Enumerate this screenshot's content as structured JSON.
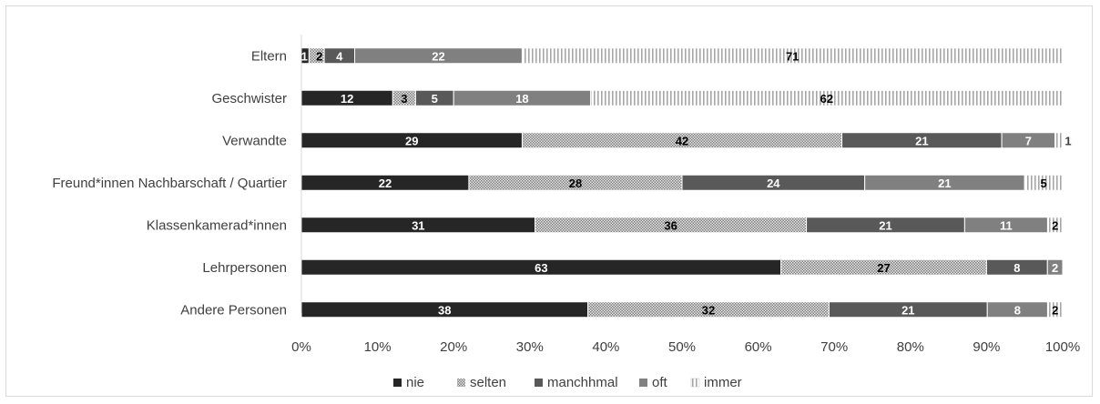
{
  "chart_data": {
    "type": "bar",
    "orientation": "horizontal",
    "stacked": "percent",
    "categories": [
      "Eltern",
      "Geschwister",
      "Verwandte",
      "Freund*innen Nachbarschaft / Quartier",
      "Klassenkamerad*innen",
      "Lehrpersonen",
      "Andere Personen"
    ],
    "series": [
      {
        "name": "nie",
        "values": [
          1,
          12,
          29,
          22,
          31,
          63,
          38
        ],
        "labels": [
          "1",
          "12",
          "29",
          "22",
          "31",
          "63",
          "38"
        ],
        "color": "#262626",
        "pattern": "solid"
      },
      {
        "name": "selten",
        "values": [
          2,
          3,
          42,
          28,
          36,
          27,
          32
        ],
        "labels": [
          "2",
          "3",
          "42",
          "28",
          "36",
          "27",
          "32"
        ],
        "color": "#bfbfbf",
        "pattern": "dots"
      },
      {
        "name": "manchhmal",
        "values": [
          4,
          5,
          21,
          24,
          21,
          8,
          21
        ],
        "labels": [
          "4",
          "5",
          "21",
          "24",
          "21",
          "8",
          "21"
        ],
        "color": "#595959",
        "pattern": "solid"
      },
      {
        "name": "oft",
        "values": [
          22,
          18,
          7,
          21,
          11,
          2,
          8
        ],
        "labels": [
          "22",
          "18",
          "7",
          "21",
          "11",
          "2",
          "8"
        ],
        "color": "#808080",
        "pattern": "solid"
      },
      {
        "name": "immer",
        "values": [
          71,
          62,
          1,
          5,
          2,
          0,
          2
        ],
        "labels": [
          "71",
          "62",
          "1",
          "5",
          "2",
          "",
          "2"
        ],
        "color": "#d9d9d9",
        "pattern": "vlines"
      }
    ],
    "x_ticks": [
      "0%",
      "10%",
      "20%",
      "30%",
      "40%",
      "50%",
      "60%",
      "70%",
      "80%",
      "90%",
      "100%"
    ],
    "xlim": [
      0,
      100
    ],
    "title": "",
    "xlabel": "",
    "ylabel": "",
    "legend_position": "bottom",
    "gridlines": false
  }
}
